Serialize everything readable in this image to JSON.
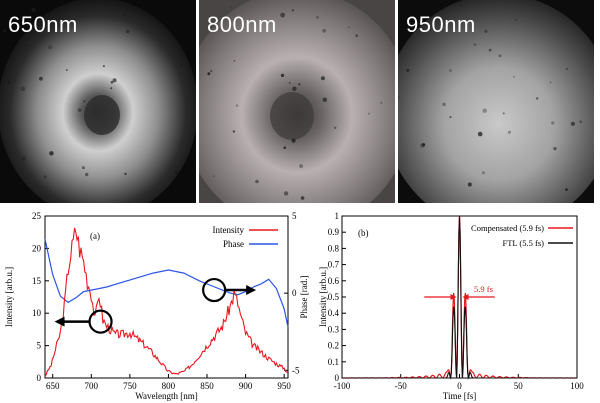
{
  "images": [
    {
      "label": "650nm",
      "pattern": "donut"
    },
    {
      "label": "800nm",
      "pattern": "donut-speckle"
    },
    {
      "label": "950nm",
      "pattern": "uniform"
    }
  ],
  "colors": {
    "intensity": "#e8161d",
    "phase": "#2d55e6",
    "compensated": "#e8161d",
    "ftl": "#111111"
  },
  "chart_data": [
    {
      "type": "line",
      "panel_label": "(a)",
      "xlabel": "Wavelength [nm]",
      "ylabel": "Intensity [arb.u.]",
      "y2label": "Phase [rad.]",
      "xlim": [
        640,
        955
      ],
      "ylim": [
        0,
        25
      ],
      "y2lim": [
        -5.5,
        5
      ],
      "xticks": [
        650,
        700,
        750,
        800,
        850,
        900,
        950
      ],
      "yticks": [
        0,
        5,
        10,
        15,
        20,
        25
      ],
      "y2ticks": [
        -5,
        0,
        5
      ],
      "series": [
        {
          "name": "Intensity",
          "axis": "left",
          "x": [
            640,
            648,
            655,
            660,
            665,
            670,
            675,
            680,
            685,
            690,
            695,
            700,
            705,
            710,
            715,
            720,
            725,
            730,
            740,
            750,
            760,
            770,
            780,
            790,
            800,
            810,
            820,
            830,
            840,
            850,
            860,
            870,
            880,
            885,
            890,
            895,
            900,
            910,
            920,
            930,
            940,
            950,
            955
          ],
          "y": [
            0.3,
            2,
            5,
            7,
            11,
            17,
            20,
            23,
            20,
            18,
            15,
            13,
            9,
            13,
            9,
            8,
            7.5,
            6.8,
            6.7,
            7,
            6,
            5,
            3.8,
            2.4,
            1,
            0.6,
            1,
            2,
            3.5,
            5,
            6.5,
            8,
            11,
            13,
            11.5,
            9,
            7,
            5,
            4,
            3,
            2.2,
            1.5,
            0.8
          ]
        },
        {
          "name": "Phase",
          "axis": "right",
          "x": [
            640,
            650,
            660,
            670,
            680,
            690,
            700,
            720,
            740,
            760,
            780,
            800,
            820,
            840,
            860,
            870,
            880,
            890,
            900,
            910,
            920,
            930,
            940,
            950,
            955
          ],
          "y": [
            3.5,
            1.2,
            -0.2,
            -0.6,
            -0.3,
            0.1,
            0.2,
            0.4,
            0.7,
            1.0,
            1.3,
            1.5,
            1.3,
            0.8,
            0.4,
            0.2,
            0.0,
            -0.1,
            0.1,
            0.4,
            0.6,
            0.9,
            0.3,
            -1.0,
            -2.2
          ]
        }
      ],
      "legend": "top-right",
      "annotations": [
        {
          "type": "circle-arrow",
          "x": 712,
          "y": 8.7,
          "direction": "left",
          "series": "Intensity"
        },
        {
          "type": "circle-arrow",
          "x": 880,
          "y": 0.2,
          "direction": "right",
          "series": "Phase"
        }
      ]
    },
    {
      "type": "line",
      "panel_label": "(b)",
      "xlabel": "Time [fs]",
      "ylabel": "Intensity [arb.u.]",
      "xlim": [
        -100,
        100
      ],
      "ylim": [
        0,
        1
      ],
      "xticks": [
        -100,
        -50,
        0,
        50,
        100
      ],
      "yticks": [
        0,
        0.1,
        0.2,
        0.3,
        0.4,
        0.5,
        0.6,
        0.7,
        0.8,
        0.9,
        1
      ],
      "series": [
        {
          "name": "Compensated (5.9 fs)",
          "x": [],
          "y": []
        },
        {
          "name": "FTL (5.5 fs)",
          "x": [],
          "y": []
        }
      ],
      "legend": "top-right",
      "annotations": [
        {
          "type": "fwhm-arrows",
          "text": "5.9 fs",
          "x_left": -30,
          "x_right": 30,
          "y": 0.5
        }
      ]
    }
  ]
}
